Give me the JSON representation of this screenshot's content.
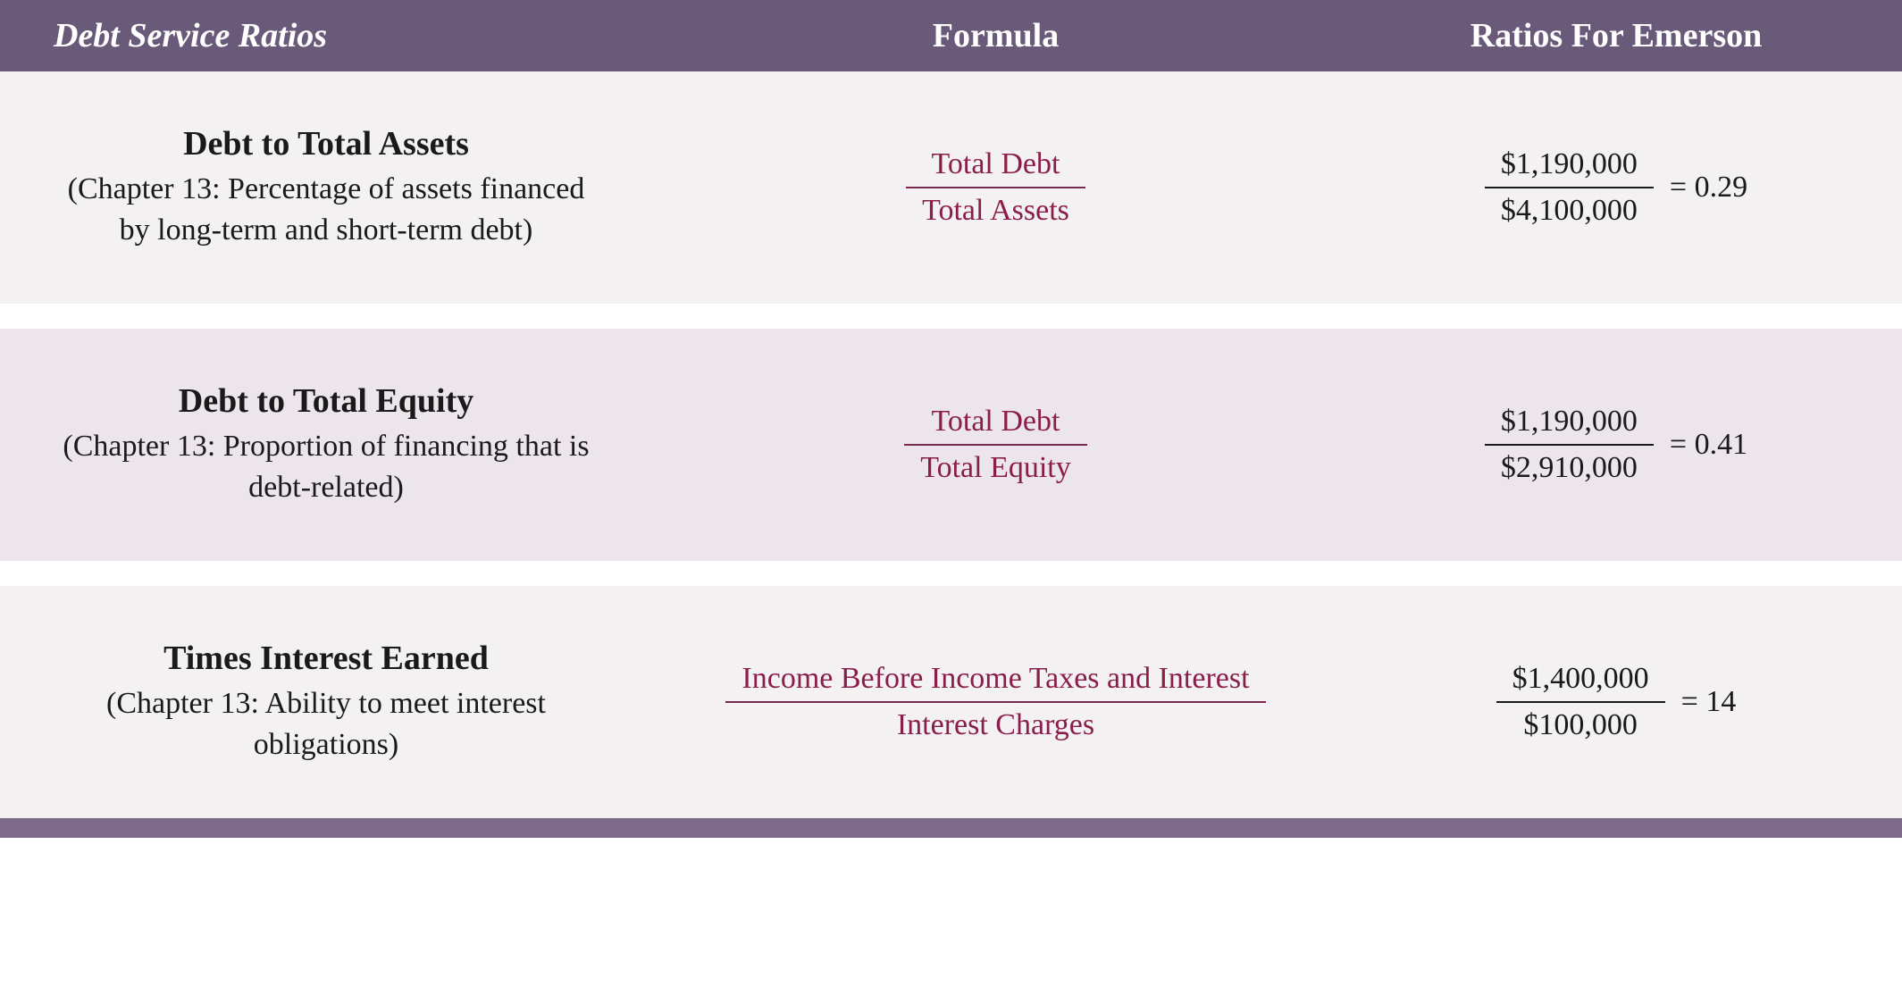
{
  "colors": {
    "header_bg": "#6a5a7a",
    "header_text": "#ffffff",
    "row_bg_light": "#f3f1f2",
    "row_bg_mid": "#ece5eb",
    "text_dark": "#1a1a1a",
    "formula_text": "#8a1e4a",
    "formula_line": "#7a2a50",
    "footer_bg": "#7d6a8b"
  },
  "header": {
    "col1": "Debt Service Ratios",
    "col2": "Formula",
    "col3": "Ratios For Emerson"
  },
  "rows": [
    {
      "title": "Debt to Total Assets",
      "description": "(Chapter 13: Percentage of assets financed by long-term and short-term debt)",
      "formula_top": "Total Debt",
      "formula_bottom": "Total Assets",
      "ratio_top": "$1,190,000",
      "ratio_bottom": "$4,100,000",
      "result": "= 0.29",
      "bg_key": "row_bg_light"
    },
    {
      "title": "Debt to Total Equity",
      "description": "(Chapter 13: Proportion of financing that is debt-related)",
      "formula_top": "Total Debt",
      "formula_bottom": "Total Equity",
      "ratio_top": "$1,190,000",
      "ratio_bottom": "$2,910,000",
      "result": "= 0.41",
      "bg_key": "row_bg_mid"
    },
    {
      "title": "Times Interest Earned",
      "description": "(Chapter 13: Ability to meet interest obligations)",
      "formula_top": "Income Before Income Taxes and Interest",
      "formula_bottom": "Interest Charges",
      "ratio_top": "$1,400,000",
      "ratio_bottom": "$100,000",
      "result": "= 14",
      "bg_key": "row_bg_light"
    }
  ]
}
